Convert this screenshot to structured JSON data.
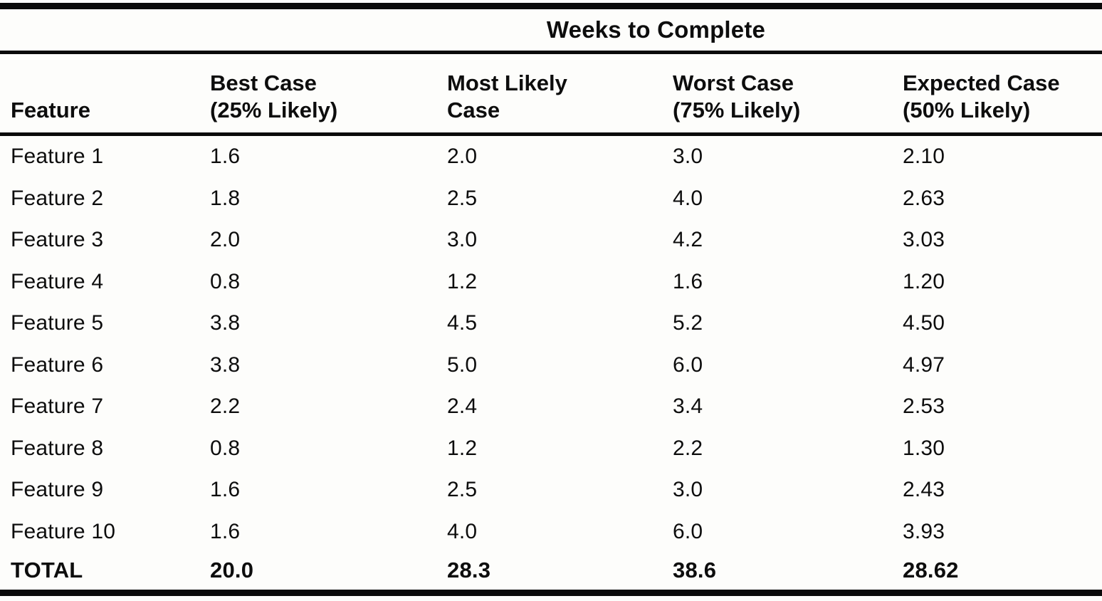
{
  "page": {
    "background_color": "#fdfdfb",
    "text_color": "#0d0d0d",
    "rule_color": "#0a0a0a"
  },
  "table": {
    "spanner": "Weeks to Complete",
    "columns": [
      "Feature",
      "Best Case\n(25% Likely)",
      "Most Likely\nCase",
      "Worst Case\n(75% Likely)",
      "Expected Case\n(50% Likely)"
    ],
    "rows": [
      {
        "feature": "Feature 1",
        "best_case": "1.6",
        "most_likely": "2.0",
        "worst_case": "3.0",
        "expected_case": "2.10"
      },
      {
        "feature": "Feature 2",
        "best_case": "1.8",
        "most_likely": "2.5",
        "worst_case": "4.0",
        "expected_case": "2.63"
      },
      {
        "feature": "Feature 3",
        "best_case": "2.0",
        "most_likely": "3.0",
        "worst_case": "4.2",
        "expected_case": "3.03"
      },
      {
        "feature": "Feature 4",
        "best_case": "0.8",
        "most_likely": "1.2",
        "worst_case": "1.6",
        "expected_case": "1.20"
      },
      {
        "feature": "Feature 5",
        "best_case": "3.8",
        "most_likely": "4.5",
        "worst_case": "5.2",
        "expected_case": "4.50"
      },
      {
        "feature": "Feature 6",
        "best_case": "3.8",
        "most_likely": "5.0",
        "worst_case": "6.0",
        "expected_case": "4.97"
      },
      {
        "feature": "Feature 7",
        "best_case": "2.2",
        "most_likely": "2.4",
        "worst_case": "3.4",
        "expected_case": "2.53"
      },
      {
        "feature": "Feature 8",
        "best_case": "0.8",
        "most_likely": "1.2",
        "worst_case": "2.2",
        "expected_case": "1.30"
      },
      {
        "feature": "Feature 9",
        "best_case": "1.6",
        "most_likely": "2.5",
        "worst_case": "3.0",
        "expected_case": "2.43"
      },
      {
        "feature": "Feature 10",
        "best_case": "1.6",
        "most_likely": "4.0",
        "worst_case": "6.0",
        "expected_case": "3.93"
      }
    ],
    "total": {
      "feature": "TOTAL",
      "best_case": "20.0",
      "most_likely": "28.3",
      "worst_case": "38.6",
      "expected_case": "28.62"
    }
  }
}
